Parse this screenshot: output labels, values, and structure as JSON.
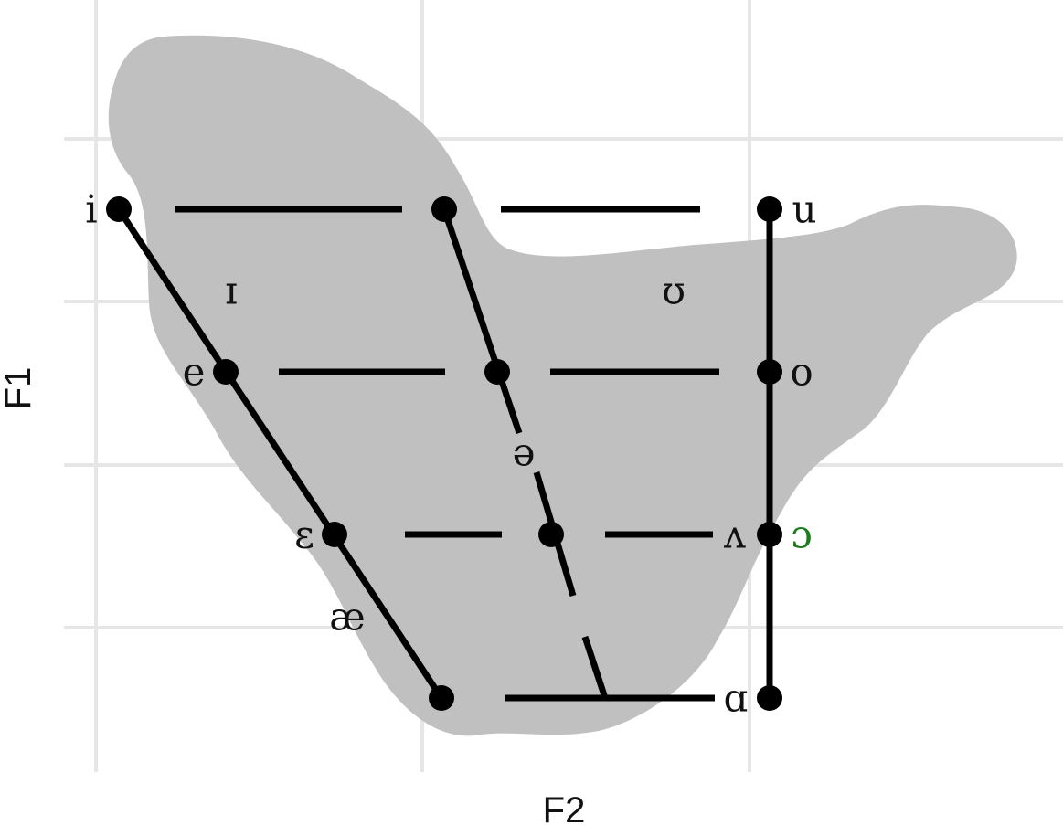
{
  "axes": {
    "x_title": "F2",
    "y_title": "F1"
  },
  "colors": {
    "background": "#ffffff",
    "grid": "#e6e6e6",
    "blob": "#c0c0c0",
    "lines": "#000000",
    "highlight_label": "#1e7b1e"
  },
  "vowels": [
    {
      "id": "i",
      "symbol": "i",
      "dotted": true
    },
    {
      "id": "u",
      "symbol": "u",
      "dotted": true
    },
    {
      "id": "near-close-front",
      "symbol": "ɪ",
      "dotted": false
    },
    {
      "id": "near-close-back",
      "symbol": "ʊ",
      "dotted": false
    },
    {
      "id": "e",
      "symbol": "e",
      "dotted": true
    },
    {
      "id": "o",
      "symbol": "o",
      "dotted": true
    },
    {
      "id": "schwa",
      "symbol": "ə",
      "dotted": false
    },
    {
      "id": "open-mid-front",
      "symbol": "ɛ",
      "dotted": true
    },
    {
      "id": "open-mid-back-unrounded",
      "symbol": "ʌ",
      "dotted": false
    },
    {
      "id": "open-mid-back-rounded",
      "symbol": "ɔ",
      "dotted": true,
      "highlight": true
    },
    {
      "id": "ash",
      "symbol": "æ",
      "dotted": false
    },
    {
      "id": "open-back",
      "symbol": "ɑ",
      "dotted": true
    }
  ]
}
